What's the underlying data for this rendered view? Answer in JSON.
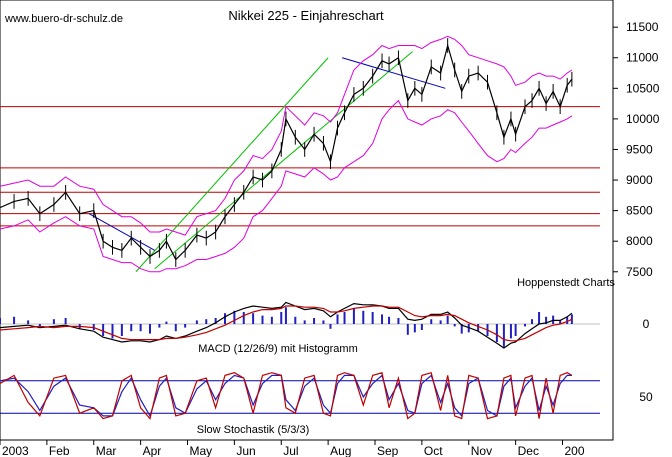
{
  "chart_data": {
    "type": "line",
    "title": "Nikkei 225 - Einjahreschart",
    "source": "www.buero-dr-schulz.de",
    "credit": "Hoppenstedt Charts",
    "colors": {
      "price": "#000000",
      "bollinger": "#e000e0",
      "trendline": "#00c000",
      "channel": "#0000c0",
      "horizontal": "#c00000",
      "macd_histogram": "#2020c0",
      "macd_line": "#000000",
      "macd_signal": "#c00000",
      "stoch_k": "#c00000",
      "stoch_d": "#2020c0",
      "grid": "#0000a0"
    },
    "price_axis": {
      "ylim": [
        7300,
        11650
      ],
      "ticks": [
        "11500",
        "11000",
        "10500",
        "10000",
        "9500",
        "9000",
        "8500",
        "8000",
        "7500"
      ]
    },
    "x_axis": {
      "xlim": [
        0,
        12.8
      ],
      "tick_labels": [
        "2003",
        "Feb",
        "Mar",
        "Apr",
        "May",
        "Jun",
        "Jul",
        "Aug",
        "Sep",
        "Oct",
        "Nov",
        "Dec",
        "200"
      ]
    },
    "price_series": {
      "name": "Nikkei 225",
      "x": [
        0,
        0.3,
        0.6,
        0.85,
        1.15,
        1.4,
        1.7,
        2.0,
        2.2,
        2.4,
        2.6,
        2.8,
        3.0,
        3.2,
        3.4,
        3.55,
        3.75,
        3.95,
        4.2,
        4.4,
        4.6,
        4.8,
        5.0,
        5.2,
        5.4,
        5.6,
        5.8,
        6.0,
        6.1,
        6.3,
        6.5,
        6.7,
        6.9,
        7.05,
        7.2,
        7.35,
        7.55,
        7.75,
        7.95,
        8.15,
        8.3,
        8.5,
        8.7,
        8.85,
        9.0,
        9.2,
        9.4,
        9.55,
        9.7,
        9.85,
        10.0,
        10.2,
        10.4,
        10.6,
        10.75,
        10.9,
        11.0,
        11.2,
        11.35,
        11.5,
        11.65,
        11.8,
        11.95,
        12.1,
        12.2
      ],
      "close": [
        8550,
        8650,
        8700,
        8450,
        8600,
        8800,
        8450,
        8500,
        8000,
        7900,
        7850,
        8050,
        7900,
        7750,
        7850,
        8000,
        7700,
        7850,
        8100,
        8050,
        8150,
        8400,
        8600,
        8800,
        9050,
        9000,
        9150,
        9500,
        10000,
        9700,
        9500,
        9750,
        9600,
        9300,
        9850,
        10100,
        10400,
        10500,
        10700,
        10950,
        10900,
        11000,
        10300,
        10500,
        10400,
        10850,
        10750,
        11200,
        10800,
        10450,
        10700,
        10750,
        10600,
        10100,
        9700,
        10000,
        9750,
        10200,
        10300,
        10500,
        10250,
        10450,
        10200,
        10550,
        10650
      ]
    },
    "bollinger_upper": [
      8900,
      8950,
      9000,
      8900,
      8900,
      9050,
      8900,
      8850,
      8600,
      8500,
      8400,
      8400,
      8300,
      8150,
      8150,
      8200,
      8150,
      8100,
      8400,
      8450,
      8500,
      8700,
      9000,
      9150,
      9400,
      9350,
      9500,
      9800,
      10200,
      10050,
      9900,
      10100,
      10050,
      9950,
      10100,
      10400,
      10800,
      10950,
      11050,
      11200,
      11150,
      11200,
      11200,
      11200,
      11150,
      11250,
      11300,
      11350,
      11300,
      11200,
      11050,
      11000,
      10950,
      10900,
      10850,
      10700,
      10550,
      10600,
      10700,
      10750,
      10700,
      10700,
      10650,
      10750,
      10800
    ],
    "bollinger_lower": [
      8200,
      8250,
      8350,
      8150,
      8300,
      8400,
      8250,
      8200,
      7750,
      7700,
      7650,
      7650,
      7550,
      7500,
      7500,
      7550,
      7550,
      7600,
      7700,
      7700,
      7750,
      7800,
      7900,
      8050,
      8400,
      8500,
      8700,
      8900,
      9150,
      9100,
      9050,
      9200,
      9100,
      9000,
      9050,
      9200,
      9300,
      9400,
      9600,
      10000,
      10150,
      10300,
      10000,
      9950,
      9900,
      10000,
      10050,
      10150,
      10100,
      9950,
      9800,
      9600,
      9400,
      9300,
      9350,
      9500,
      9450,
      9600,
      9700,
      9850,
      9850,
      9900,
      9950,
      10000,
      10050
    ],
    "horizontal_lines": [
      10200,
      9200,
      8800,
      8450,
      8250
    ],
    "trendlines": [
      {
        "x": [
          2.9,
          7.0
        ],
        "y": [
          7500,
          11000
        ]
      },
      {
        "x": [
          3.3,
          8.8
        ],
        "y": [
          7550,
          11100
        ]
      },
      {
        "x": [
          1.9,
          3.3
        ],
        "y": [
          8450,
          7850
        ]
      },
      {
        "x": [
          7.3,
          9.5
        ],
        "y": [
          11000,
          10500
        ]
      }
    ],
    "macd_panel": {
      "label": "MACD (12/26/9) mit Histogramm",
      "ylim": [
        -2,
        2
      ],
      "tick": "0",
      "histogram": [
        0.5,
        0.6,
        0.3,
        -0.3,
        0.4,
        0.5,
        -0.4,
        -0.5,
        -1.0,
        -1.2,
        -1.0,
        -0.6,
        -0.6,
        -0.8,
        -0.3,
        0.2,
        -0.6,
        -0.3,
        0.3,
        0.4,
        0.5,
        0.9,
        1.1,
        1.0,
        0.9,
        0.7,
        0.6,
        1.0,
        1.4,
        0.6,
        0.3,
        0.5,
        0.3,
        -0.4,
        0.8,
        1.0,
        1.3,
        1.1,
        1.0,
        0.8,
        0.6,
        0.5,
        -0.9,
        -0.7,
        -0.5,
        0.4,
        0.3,
        0.7,
        -0.2,
        -0.8,
        -0.7,
        -0.6,
        -1.0,
        -1.5,
        -1.9,
        -1.2,
        -1.0,
        -0.2,
        0.4,
        1.0,
        0.6,
        0.7,
        0.3,
        0.6,
        0.8
      ],
      "macd": [
        -0.3,
        -0.2,
        -0.1,
        -0.3,
        -0.2,
        -0.1,
        -0.4,
        -0.6,
        -1.1,
        -1.3,
        -1.5,
        -1.4,
        -1.4,
        -1.5,
        -1.3,
        -1.0,
        -1.2,
        -1.0,
        -0.6,
        -0.3,
        0.1,
        0.6,
        1.0,
        1.3,
        1.5,
        1.4,
        1.3,
        1.4,
        1.8,
        1.5,
        1.2,
        1.3,
        1.1,
        0.6,
        1.0,
        1.3,
        1.7,
        1.6,
        1.6,
        1.5,
        1.3,
        1.3,
        0.4,
        0.3,
        0.4,
        0.8,
        0.8,
        1.0,
        0.5,
        -0.1,
        -0.3,
        -0.6,
        -1.1,
        -1.6,
        -2.0,
        -1.6,
        -1.5,
        -0.8,
        -0.4,
        0.0,
        0.1,
        0.3,
        0.3,
        0.6,
        0.9
      ],
      "signal": [
        -0.5,
        -0.4,
        -0.3,
        -0.2,
        -0.3,
        -0.2,
        -0.2,
        -0.3,
        -0.6,
        -0.9,
        -1.2,
        -1.3,
        -1.3,
        -1.3,
        -1.3,
        -1.2,
        -1.2,
        -1.1,
        -0.9,
        -0.7,
        -0.4,
        -0.1,
        0.3,
        0.7,
        1.0,
        1.2,
        1.2,
        1.3,
        1.5,
        1.5,
        1.4,
        1.4,
        1.3,
        1.0,
        1.0,
        1.1,
        1.3,
        1.4,
        1.5,
        1.5,
        1.4,
        1.4,
        1.0,
        0.7,
        0.6,
        0.7,
        0.7,
        0.8,
        0.7,
        0.4,
        0.1,
        -0.2,
        -0.5,
        -0.9,
        -1.3,
        -1.4,
        -1.4,
        -1.2,
        -0.9,
        -0.6,
        -0.3,
        -0.1,
        0.0,
        0.2,
        0.4
      ]
    },
    "stochastic_panel": {
      "label": "Slow Stochastik (5/3/3)",
      "ylim": [
        0,
        100
      ],
      "tick": "50",
      "levels": [
        80,
        20
      ],
      "k": [
        75,
        90,
        40,
        15,
        85,
        90,
        20,
        30,
        10,
        15,
        80,
        90,
        30,
        10,
        85,
        90,
        15,
        20,
        80,
        85,
        30,
        90,
        95,
        85,
        20,
        90,
        95,
        90,
        30,
        20,
        85,
        90,
        20,
        15,
        90,
        95,
        90,
        35,
        90,
        95,
        30,
        85,
        10,
        20,
        90,
        95,
        25,
        90,
        15,
        10,
        90,
        85,
        10,
        15,
        85,
        90,
        15,
        85,
        90,
        10,
        85,
        20,
        90,
        95,
        90
      ],
      "d": [
        80,
        85,
        60,
        25,
        70,
        85,
        35,
        30,
        15,
        15,
        60,
        85,
        45,
        15,
        70,
        85,
        30,
        20,
        65,
        80,
        45,
        75,
        90,
        85,
        35,
        75,
        90,
        90,
        45,
        25,
        70,
        85,
        35,
        20,
        75,
        90,
        90,
        50,
        75,
        90,
        45,
        75,
        25,
        20,
        75,
        90,
        40,
        75,
        30,
        15,
        75,
        85,
        25,
        15,
        70,
        85,
        30,
        70,
        85,
        25,
        70,
        35,
        75,
        90,
        90
      ]
    }
  }
}
